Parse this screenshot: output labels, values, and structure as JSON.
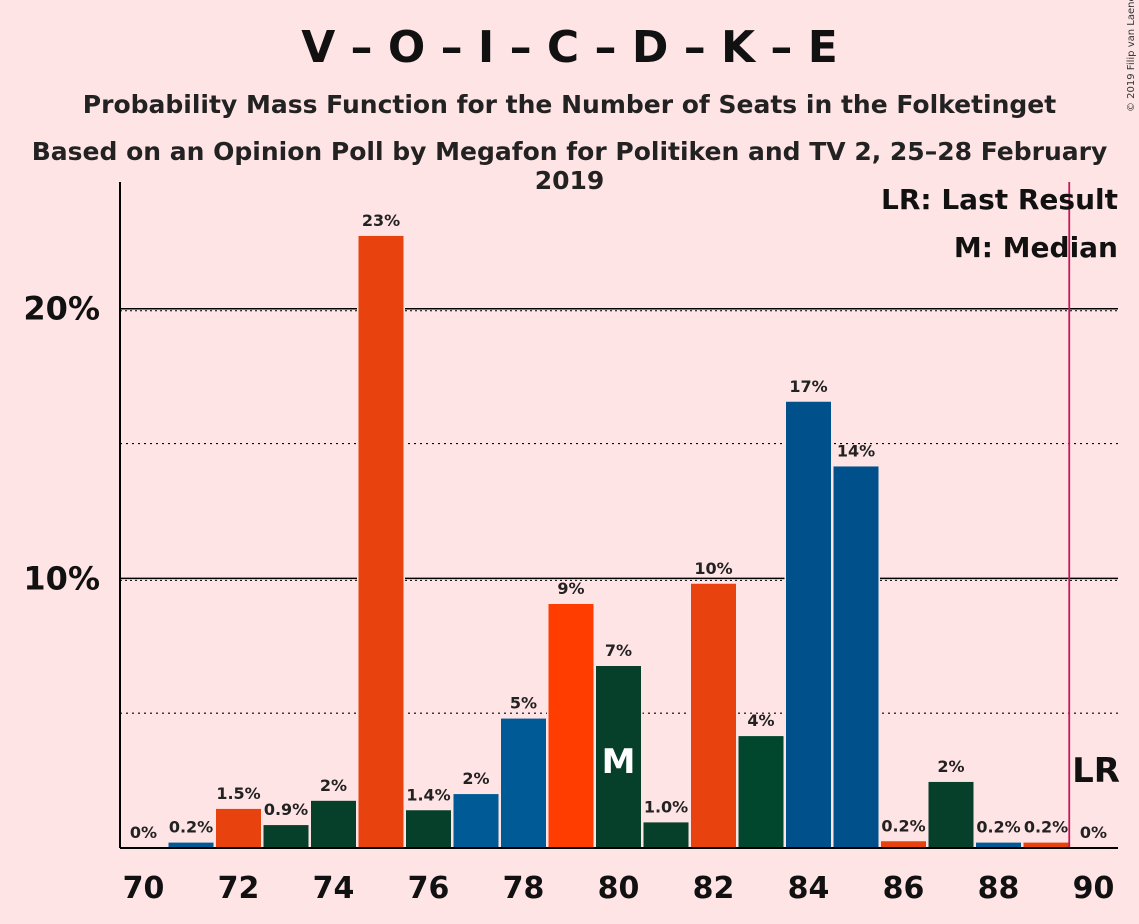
{
  "header": {
    "title": "V – O – I – C – D – K – E",
    "subtitle": "Probability Mass Function for the Number of Seats in the Folketinget",
    "source": "Based on an Opinion Poll by Megafon for Politiken and TV 2, 25–28 February 2019",
    "copyright": "© 2019 Filip van Laenen"
  },
  "legend": {
    "last_result": "LR: Last Result",
    "median": "M: Median"
  },
  "markers": {
    "last_result_label": "LR",
    "last_result_seats": 89.5,
    "median_label": "M",
    "median_seats": 80
  },
  "colors": {
    "background": "#FFE4E6",
    "palette": [
      "#0D3B66",
      "#E8420F",
      "#06402B",
      "#FF3D00",
      "#005A96",
      "#00472D",
      "#00508C"
    ]
  },
  "chart_data": {
    "type": "bar",
    "title": "V – O – I – C – D – K – E",
    "xlabel": "",
    "ylabel": "",
    "ylim": [
      0,
      24.7
    ],
    "x_ticks": [
      70,
      72,
      74,
      76,
      78,
      80,
      82,
      84,
      86,
      88,
      90
    ],
    "y_ticks": [
      {
        "value": 10,
        "label": "10%"
      },
      {
        "value": 20,
        "label": "20%"
      }
    ],
    "minor_y_lines": [
      5,
      15
    ],
    "x": [
      70,
      71,
      72,
      73,
      74,
      75,
      76,
      77,
      78,
      79,
      80,
      81,
      82,
      83,
      84,
      85,
      86,
      87,
      88,
      89,
      90
    ],
    "values": [
      0,
      0.2,
      1.5,
      0.9,
      2,
      23,
      1.4,
      2,
      5,
      9,
      7,
      1.0,
      10,
      4,
      17,
      14,
      0.2,
      2,
      0.2,
      0.2,
      0
    ],
    "bar_heights": [
      0,
      0.2,
      1.45,
      0.85,
      1.75,
      22.7,
      1.4,
      2.0,
      4.8,
      9.05,
      6.75,
      0.95,
      9.8,
      4.15,
      16.55,
      14.15,
      0.25,
      2.45,
      0.2,
      0.2,
      0
    ],
    "labels": [
      "0%",
      "0.2%",
      "1.5%",
      "0.9%",
      "2%",
      "23%",
      "1.4%",
      "2%",
      "5%",
      "9%",
      "7%",
      "1.0%",
      "10%",
      "4%",
      "17%",
      "14%",
      "0.2%",
      "2%",
      "0.2%",
      "0.2%",
      "0%"
    ],
    "colors": [
      "#0D3B66",
      "#005A96",
      "#E8420F",
      "#06402B",
      "#06402B",
      "#E8420F",
      "#06402B",
      "#005A96",
      "#005A96",
      "#FF3D00",
      "#06402B",
      "#06402B",
      "#E8420F",
      "#00472D",
      "#00508C",
      "#00508C",
      "#E8420F",
      "#06402B",
      "#005A96",
      "#E8420F",
      "#0D3B66"
    ]
  }
}
